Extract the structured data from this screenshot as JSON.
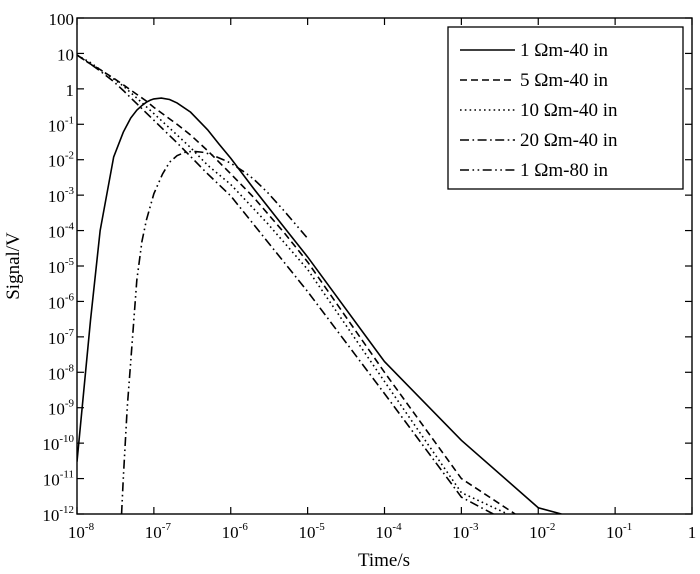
{
  "chart_data": {
    "type": "line",
    "title": "",
    "xlabel": "Time/s",
    "ylabel": "Signal/V",
    "xscale": "log",
    "yscale": "log",
    "xlim": [
      1e-08,
      1
    ],
    "ylim": [
      1e-12,
      100
    ],
    "x_ticks": [
      {
        "base": "10",
        "exp": "-8"
      },
      {
        "base": "10",
        "exp": "-7"
      },
      {
        "base": "10",
        "exp": "-6"
      },
      {
        "base": "10",
        "exp": "-5"
      },
      {
        "base": "10",
        "exp": "-4"
      },
      {
        "base": "10",
        "exp": "-3"
      },
      {
        "base": "10",
        "exp": "-2"
      },
      {
        "base": "10",
        "exp": "-1"
      },
      {
        "base": "1",
        "exp": ""
      }
    ],
    "y_ticks": [
      {
        "base": "100",
        "exp": ""
      },
      {
        "base": "10",
        "exp": ""
      },
      {
        "base": "1",
        "exp": ""
      },
      {
        "base": "10",
        "exp": "-1"
      },
      {
        "base": "10",
        "exp": "-2"
      },
      {
        "base": "10",
        "exp": "-3"
      },
      {
        "base": "10",
        "exp": "-4"
      },
      {
        "base": "10",
        "exp": "-5"
      },
      {
        "base": "10",
        "exp": "-6"
      },
      {
        "base": "10",
        "exp": "-7"
      },
      {
        "base": "10",
        "exp": "-8"
      },
      {
        "base": "10",
        "exp": "-9"
      },
      {
        "base": "10",
        "exp": "-10"
      },
      {
        "base": "10",
        "exp": "-11"
      },
      {
        "base": "10",
        "exp": "-12"
      }
    ],
    "legend": "top-right",
    "grid": false,
    "series": [
      {
        "name": "1 Ωm-40 in",
        "dash": "solid",
        "x": [
          1e-08,
          1.5e-08,
          2e-08,
          3e-08,
          4e-08,
          5e-08,
          6e-08,
          7e-08,
          8e-08,
          9e-08,
          1e-07,
          1.25e-07,
          1.6e-07,
          2e-07,
          3e-07,
          5e-07,
          7e-07,
          1e-06,
          2e-06,
          5e-06,
          1e-05,
          0.0001,
          0.001,
          0.01,
          0.02
        ],
        "y": [
          3e-11,
          3e-07,
          0.0001,
          0.012,
          0.06,
          0.15,
          0.25,
          0.34,
          0.42,
          0.48,
          0.52,
          0.55,
          0.5,
          0.4,
          0.22,
          0.07,
          0.028,
          0.011,
          0.0015,
          0.00012,
          1.8e-05,
          2e-08,
          1.2e-10,
          1.5e-12,
          1e-12
        ]
      },
      {
        "name": "5 Ωm-40 in",
        "dash": "dashed",
        "x": [
          1e-08,
          1.5e-08,
          2e-08,
          3e-08,
          4e-08,
          6e-08,
          8e-08,
          1e-07,
          2e-07,
          3e-07,
          5e-07,
          1e-06,
          2e-06,
          5e-06,
          1e-05,
          0.0001,
          0.001,
          0.005
        ],
        "y": [
          9,
          5,
          3.5,
          2,
          1.3,
          0.7,
          0.45,
          0.3,
          0.1,
          0.05,
          0.018,
          0.004,
          0.00085,
          8.5e-05,
          1.3e-05,
          1e-08,
          1e-11,
          1e-12
        ]
      },
      {
        "name": "10 Ωm-40 in",
        "dash": "dotted",
        "x": [
          1e-08,
          1.5e-08,
          2e-08,
          3e-08,
          4e-08,
          6e-08,
          1e-07,
          2e-07,
          3e-07,
          5e-07,
          1e-06,
          3e-06,
          1e-05,
          0.0001,
          0.001,
          0.004
        ],
        "y": [
          9,
          5.5,
          3.5,
          1.9,
          1.2,
          0.55,
          0.2,
          0.05,
          0.022,
          0.007,
          0.002,
          0.00016,
          8e-06,
          5.5e-09,
          4e-12,
          1e-12
        ]
      },
      {
        "name": "20 Ωm-40 in",
        "dash": "dashdot",
        "x": [
          1e-08,
          1.5e-08,
          2e-08,
          3e-08,
          4e-08,
          6e-08,
          1e-07,
          2e-07,
          5e-07,
          1e-06,
          1e-05,
          0.0001,
          0.001,
          0.0026
        ],
        "y": [
          9,
          5,
          3.2,
          1.6,
          0.9,
          0.38,
          0.13,
          0.03,
          0.004,
          0.00095,
          1.9e-06,
          2.5e-09,
          3e-12,
          1e-12
        ]
      },
      {
        "name": "1 Ωm-80 in",
        "dash": "dashdotdot",
        "x": [
          3.8e-08,
          4e-08,
          4.5e-08,
          5e-08,
          6e-08,
          7e-08,
          8e-08,
          1e-07,
          1.3e-07,
          1.6e-07,
          2e-07,
          2.5e-07,
          3e-07,
          3.5e-07,
          4e-07,
          4.5e-07,
          5e-07,
          6e-07,
          8e-07,
          1e-06,
          1.5e-06,
          2e-06,
          3e-06,
          5e-06,
          1e-05
        ],
        "y": [
          1e-12,
          1e-11,
          1e-09,
          2e-08,
          4e-06,
          5e-05,
          0.0002,
          0.0011,
          0.004,
          0.0085,
          0.013,
          0.016,
          0.017,
          0.017,
          0.0165,
          0.016,
          0.015,
          0.013,
          0.01,
          0.008,
          0.0045,
          0.0028,
          0.0012,
          0.00035,
          6e-05
        ]
      }
    ]
  }
}
